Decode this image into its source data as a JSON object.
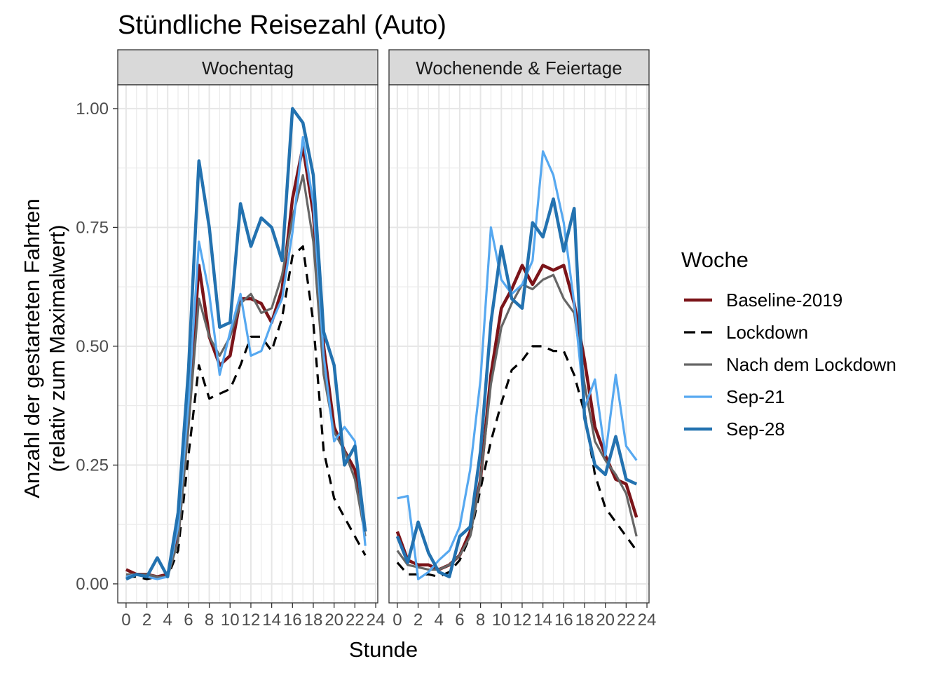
{
  "title": "Stündliche Reisezahl (Auto)",
  "xlabel": "Stunde",
  "ylabel_line1": "Anzahl der gestarteten Fahrten",
  "ylabel_line2": "(relativ zum Maximalwert)",
  "legend_title": "Woche",
  "colors": {
    "Baseline-2019": "#7b1419",
    "Lockdown": "#000000",
    "Nach dem Lockdown": "#666666",
    "Sep-21": "#56a8f0",
    "Sep-28": "#2372b0"
  },
  "chart_data": {
    "type": "line",
    "facets": [
      "Wochentag",
      "Wochenende & Feiertage"
    ],
    "x_ticks": [
      0,
      2,
      4,
      6,
      8,
      10,
      12,
      14,
      16,
      18,
      20,
      22,
      24
    ],
    "y_ticks": [
      "0.00",
      "0.25",
      "0.50",
      "0.75",
      "1.00"
    ],
    "y_tick_values": [
      0,
      0.25,
      0.5,
      0.75,
      1.0
    ],
    "xlim": [
      -0.8,
      24.2
    ],
    "ylim": [
      -0.04,
      1.05
    ],
    "x": [
      0,
      1,
      2,
      3,
      4,
      5,
      6,
      7,
      8,
      9,
      10,
      11,
      12,
      13,
      14,
      15,
      16,
      17,
      18,
      19,
      20,
      21,
      22,
      23
    ],
    "grid": true,
    "legend_position": "right",
    "series": [
      {
        "name": "Baseline-2019",
        "style": "solid",
        "values": {
          "Wochentag": [
            0.03,
            0.02,
            0.02,
            0.015,
            0.02,
            0.1,
            0.35,
            0.67,
            0.52,
            0.46,
            0.48,
            0.6,
            0.6,
            0.59,
            0.55,
            0.62,
            0.81,
            0.92,
            0.78,
            0.5,
            0.33,
            0.28,
            0.24,
            0.11
          ],
          "Wochenende & Feiertage": [
            0.11,
            0.05,
            0.04,
            0.04,
            0.03,
            0.04,
            0.06,
            0.11,
            0.22,
            0.44,
            0.58,
            0.62,
            0.67,
            0.63,
            0.67,
            0.66,
            0.67,
            0.59,
            0.47,
            0.33,
            0.27,
            0.22,
            0.21,
            0.14
          ]
        }
      },
      {
        "name": "Lockdown",
        "style": "dashed",
        "values": {
          "Wochentag": [
            0.015,
            0.015,
            0.01,
            0.015,
            0.015,
            0.07,
            0.27,
            0.46,
            0.39,
            0.4,
            0.41,
            0.46,
            0.52,
            0.52,
            0.49,
            0.56,
            0.69,
            0.71,
            0.55,
            0.28,
            0.18,
            0.14,
            0.1,
            0.06
          ],
          "Wochenende & Feiertage": [
            0.045,
            0.02,
            0.02,
            0.02,
            0.015,
            0.025,
            0.05,
            0.1,
            0.2,
            0.3,
            0.38,
            0.45,
            0.47,
            0.5,
            0.5,
            0.49,
            0.49,
            0.44,
            0.36,
            0.23,
            0.16,
            0.13,
            0.1,
            0.07
          ]
        }
      },
      {
        "name": "Nach dem Lockdown",
        "style": "solid",
        "values": {
          "Wochentag": [
            0.02,
            0.02,
            0.02,
            0.015,
            0.015,
            0.09,
            0.33,
            0.6,
            0.52,
            0.48,
            0.52,
            0.59,
            0.61,
            0.57,
            0.58,
            0.65,
            0.77,
            0.86,
            0.72,
            0.44,
            0.32,
            0.28,
            0.22,
            0.1
          ],
          "Wochenende & Feiertage": [
            0.07,
            0.04,
            0.035,
            0.03,
            0.03,
            0.04,
            0.06,
            0.1,
            0.22,
            0.42,
            0.54,
            0.59,
            0.63,
            0.62,
            0.64,
            0.65,
            0.6,
            0.57,
            0.42,
            0.3,
            0.26,
            0.23,
            0.19,
            0.1
          ]
        }
      },
      {
        "name": "Sep-21",
        "style": "solid",
        "values": {
          "Wochentag": [
            0.015,
            0.02,
            0.015,
            0.01,
            0.015,
            0.12,
            0.38,
            0.72,
            0.61,
            0.44,
            0.53,
            0.61,
            0.48,
            0.49,
            0.55,
            0.6,
            0.74,
            0.94,
            0.8,
            0.48,
            0.3,
            0.33,
            0.3,
            0.08
          ],
          "Wochenende & Feiertage": [
            0.18,
            0.185,
            0.01,
            0.025,
            0.05,
            0.07,
            0.12,
            0.24,
            0.43,
            0.75,
            0.64,
            0.61,
            0.63,
            0.68,
            0.91,
            0.86,
            0.76,
            0.59,
            0.37,
            0.43,
            0.27,
            0.44,
            0.29,
            0.26
          ]
        }
      },
      {
        "name": "Sep-28",
        "style": "solid",
        "values": {
          "Wochentag": [
            0.01,
            0.02,
            0.015,
            0.055,
            0.015,
            0.15,
            0.45,
            0.89,
            0.75,
            0.54,
            0.55,
            0.8,
            0.71,
            0.77,
            0.75,
            0.68,
            1.0,
            0.97,
            0.86,
            0.53,
            0.46,
            0.25,
            0.29,
            0.11
          ],
          "Wochenende & Feiertage": [
            0.1,
            0.045,
            0.13,
            0.065,
            0.025,
            0.015,
            0.1,
            0.12,
            0.28,
            0.55,
            0.71,
            0.6,
            0.58,
            0.76,
            0.73,
            0.81,
            0.7,
            0.79,
            0.35,
            0.25,
            0.23,
            0.31,
            0.22,
            0.21
          ]
        }
      }
    ]
  }
}
